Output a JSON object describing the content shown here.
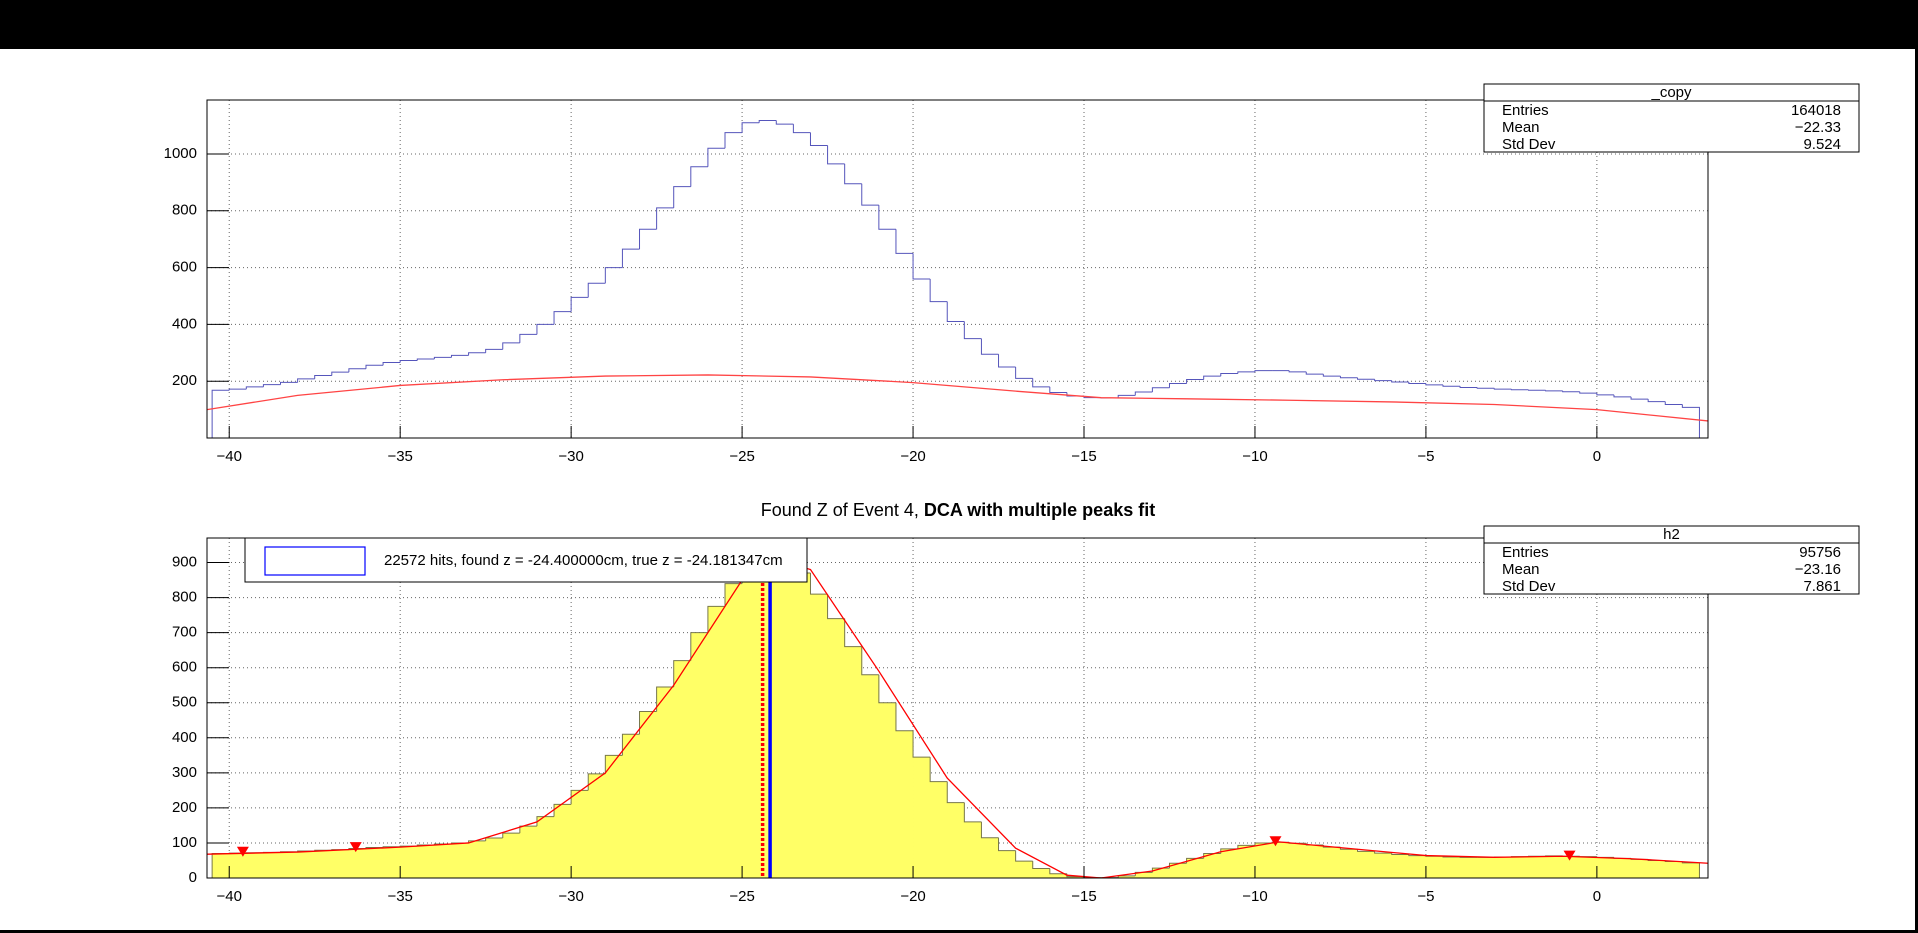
{
  "chart_data": [
    {
      "type": "histogram",
      "bins": [
        -40.5,
        -40,
        -39.5,
        -39,
        -38.5,
        -38,
        -37.5,
        -37,
        -36.5,
        -36,
        -35.5,
        -35,
        -34.5,
        -34,
        -33.5,
        -33,
        -32.5,
        -32,
        -31.5,
        -31,
        -30.5,
        -30,
        -29.5,
        -29,
        -28.5,
        -28,
        -27.5,
        -27,
        -26.5,
        -26,
        -25.5,
        -25,
        -24.5,
        -24,
        -23.5,
        -23,
        -22.5,
        -22,
        -21.5,
        -21,
        -20.5,
        -20,
        -19.5,
        -19,
        -18.5,
        -18,
        -17.5,
        -17,
        -16.5,
        -16,
        -15.5,
        -15,
        -14.5,
        -14,
        -13.5,
        -13,
        -12.5,
        -12,
        -11.5,
        -11,
        -10.5,
        -10,
        -9.5,
        -9,
        -8.5,
        -8,
        -7.5,
        -7,
        -6.5,
        -6,
        -5.5,
        -5,
        -4.5,
        -4,
        -3.5,
        -3,
        -2.5,
        -2,
        -1.5,
        -1,
        -0.5,
        0,
        0.5,
        1,
        1.5,
        2,
        2.5,
        3
      ],
      "values": [
        168,
        172,
        180,
        188,
        196,
        208,
        220,
        232,
        244,
        256,
        266,
        273,
        278,
        284,
        291,
        300,
        312,
        335,
        365,
        400,
        445,
        495,
        545,
        600,
        665,
        735,
        810,
        885,
        955,
        1020,
        1075,
        1110,
        1118,
        1105,
        1075,
        1030,
        965,
        895,
        820,
        735,
        650,
        560,
        480,
        410,
        350,
        295,
        250,
        210,
        180,
        160,
        148,
        142,
        141,
        150,
        162,
        177,
        192,
        206,
        218,
        227,
        233,
        237,
        237,
        233,
        225,
        218,
        212,
        207,
        202,
        197,
        192,
        187,
        182,
        178,
        175,
        172,
        170,
        168,
        166,
        163,
        158,
        152,
        145,
        137,
        128,
        118,
        108
      ],
      "color": "#5555bb",
      "fit": {
        "x": [
          -40.65,
          -38,
          -35,
          -32,
          -29,
          -26,
          -23,
          -20,
          -17,
          -14.5,
          -12,
          -9,
          -6,
          -3,
          0,
          3.25
        ],
        "values": [
          100,
          150,
          185,
          205,
          218,
          222,
          215,
          195,
          165,
          142,
          138,
          133,
          127,
          118,
          100,
          60
        ],
        "color": "#ff4444"
      },
      "xlim": [
        -40.65,
        3.25
      ],
      "xticks": [
        {
          "value": -40,
          "label": "−40"
        },
        {
          "value": -35,
          "label": "−35"
        },
        {
          "value": -30,
          "label": "−30"
        },
        {
          "value": -25,
          "label": "−25"
        },
        {
          "value": -20,
          "label": "−20"
        },
        {
          "value": -15,
          "label": "−15"
        },
        {
          "value": -10,
          "label": "−10"
        },
        {
          "value": -5,
          "label": "−5"
        },
        0
      ],
      "ylim": [
        0,
        1190
      ],
      "yticks": [
        200,
        400,
        600,
        800,
        1000
      ],
      "grid": true,
      "stats": {
        "title": "_copy",
        "rows": [
          [
            "Entries",
            "164018"
          ],
          [
            "Mean",
            "−22.33"
          ],
          [
            "Std Dev",
            "9.524"
          ]
        ]
      }
    },
    {
      "type": "histogram",
      "title": "Found Z of Event 4, ",
      "title_bold": "DCA with multiple peaks fit",
      "bins": [
        -40.5,
        -40,
        -39.5,
        -39,
        -38.5,
        -38,
        -37.5,
        -37,
        -36.5,
        -36,
        -35.5,
        -35,
        -34.5,
        -34,
        -33.5,
        -33,
        -32.5,
        -32,
        -31.5,
        -31,
        -30.5,
        -30,
        -29.5,
        -29,
        -28.5,
        -28,
        -27.5,
        -27,
        -26.5,
        -26,
        -25.5,
        -25,
        -24.5,
        -24,
        -23.5,
        -23,
        -22.5,
        -22,
        -21.5,
        -21,
        -20.5,
        -20,
        -19.5,
        -19,
        -18.5,
        -18,
        -17.5,
        -17,
        -16.5,
        -16,
        -15.5,
        -15,
        -14.5,
        -14,
        -13.5,
        -13,
        -12.5,
        -12,
        -11.5,
        -11,
        -10.5,
        -10,
        -9.5,
        -9,
        -8.5,
        -8,
        -7.5,
        -7,
        -6.5,
        -6,
        -5.5,
        -5,
        -4.5,
        -4,
        -3.5,
        -3,
        -2.5,
        -2,
        -1.5,
        -1,
        -0.5,
        0,
        0.5,
        1,
        1.5,
        2,
        2.5,
        3
      ],
      "values": [
        70,
        71,
        72,
        73,
        75,
        77,
        79,
        81,
        84,
        87,
        89,
        91,
        94,
        97,
        100,
        106,
        114,
        128,
        148,
        175,
        210,
        250,
        297,
        350,
        410,
        475,
        545,
        620,
        700,
        775,
        840,
        890,
        915,
        905,
        870,
        810,
        740,
        660,
        580,
        500,
        420,
        345,
        275,
        215,
        160,
        115,
        78,
        48,
        27,
        12,
        4,
        1,
        1,
        6,
        16,
        28,
        42,
        56,
        70,
        83,
        93,
        100,
        102,
        99,
        94,
        88,
        82,
        76,
        71,
        67,
        64,
        62,
        60,
        59,
        59,
        60,
        61,
        62,
        63,
        62,
        61,
        59,
        56,
        53,
        50,
        47,
        43
      ],
      "color": "#77774a",
      "fill": "#ffff66",
      "fit": {
        "x": [
          -40.65,
          -38,
          -35,
          -33,
          -31,
          -29,
          -27,
          -25,
          -24.4,
          -23,
          -21,
          -19,
          -17,
          -15.5,
          -14.5,
          -13,
          -11,
          -9.3,
          -7,
          -5,
          -3,
          -1,
          1,
          3.25
        ],
        "values": [
          68,
          74,
          88,
          100,
          160,
          300,
          550,
          850,
          920,
          880,
          590,
          285,
          85,
          8,
          0,
          20,
          75,
          103,
          82,
          64,
          59,
          62,
          55,
          42
        ],
        "color": "#ff0000"
      },
      "peaks": {
        "x": [
          -39.6,
          -36.3,
          -9.4,
          -0.8
        ],
        "values": [
          75,
          88,
          105,
          64
        ],
        "color": "#ff0000"
      },
      "vlines": [
        {
          "x": -24.4,
          "color": "#ff0000",
          "style": "dotted"
        },
        {
          "x": -24.181347,
          "color": "#0000ff",
          "style": "solid"
        }
      ],
      "legend": {
        "text": "22572 hits, found z = -24.400000cm, true z = -24.181347cm",
        "color": "#0000ff"
      },
      "xlim": [
        -40.65,
        3.25
      ],
      "xticks": [
        {
          "value": -40,
          "label": "−40"
        },
        {
          "value": -35,
          "label": "−35"
        },
        {
          "value": -30,
          "label": "−30"
        },
        {
          "value": -25,
          "label": "−25"
        },
        {
          "value": -20,
          "label": "−20"
        },
        {
          "value": -15,
          "label": "−15"
        },
        {
          "value": -10,
          "label": "−10"
        },
        {
          "value": -5,
          "label": "−5"
        },
        0
      ],
      "ylim": [
        0,
        970
      ],
      "yticks": [
        0,
        100,
        200,
        300,
        400,
        500,
        600,
        700,
        800,
        900
      ],
      "grid": true,
      "stats": {
        "title": "h2",
        "rows": [
          [
            "Entries",
            "95756"
          ],
          [
            "Mean",
            "−23.16"
          ],
          [
            "Std Dev",
            "7.861"
          ]
        ]
      }
    }
  ]
}
